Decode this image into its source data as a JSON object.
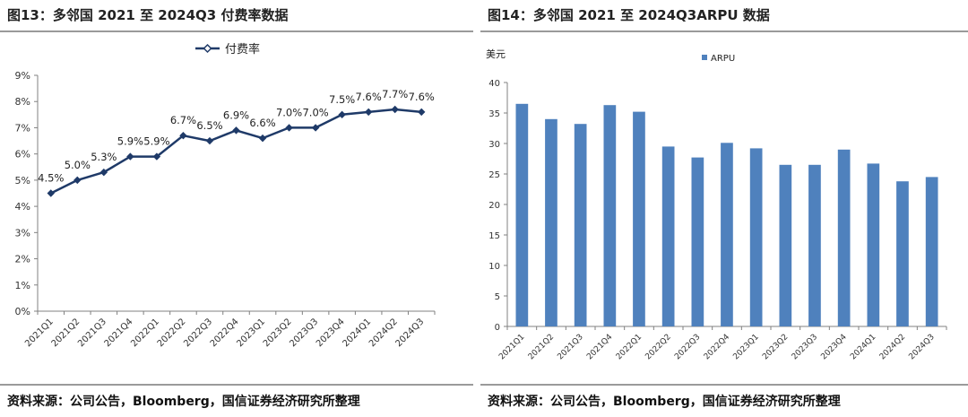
{
  "left": {
    "title": "图13：多邻国 2021 至 2024Q3 付费率数据",
    "source": "资料来源：公司公告，Bloomberg，国信证券经济研究所整理"
  },
  "right": {
    "title": "图14：多邻国 2021 至 2024Q3ARPU 数据",
    "source": "资料来源：公司公告，Bloomberg，国信证券经济研究所整理"
  },
  "colors": {
    "line": "#1f3a68",
    "bar": "#4f81bd",
    "axis": "#808080",
    "rule": "#9a9a9a"
  },
  "chart_data": [
    {
      "type": "line",
      "title": "",
      "xlabel": "",
      "ylabel": "",
      "categories": [
        "2021Q1",
        "2021Q2",
        "2021Q3",
        "2021Q4",
        "2022Q1",
        "2022Q2",
        "2022Q3",
        "2022Q4",
        "2023Q1",
        "2023Q2",
        "2023Q3",
        "2023Q4",
        "2024Q1",
        "2024Q2",
        "2024Q3"
      ],
      "series": [
        {
          "name": "付费率",
          "values": [
            4.5,
            5.0,
            5.3,
            5.9,
            5.9,
            6.7,
            6.5,
            6.9,
            6.6,
            7.0,
            7.0,
            7.5,
            7.6,
            7.7,
            7.6
          ]
        }
      ],
      "data_labels": [
        "4.5%",
        "5.0%",
        "5.3%",
        "5.9%",
        "5.9%",
        "6.7%",
        "6.5%",
        "6.9%",
        "6.6%",
        "7.0%",
        "7.0%",
        "7.5%",
        "7.6%",
        "7.7%",
        "7.6%"
      ],
      "ylim": [
        0,
        9
      ],
      "yticks": [
        "0%",
        "1%",
        "2%",
        "3%",
        "4%",
        "5%",
        "6%",
        "7%",
        "8%",
        "9%"
      ],
      "legend": "top-center",
      "grid": false
    },
    {
      "type": "bar",
      "title": "",
      "xlabel": "",
      "ylabel": "美元",
      "categories": [
        "2021Q1",
        "2021Q2",
        "2021Q3",
        "2021Q4",
        "2022Q1",
        "2022Q2",
        "2022Q3",
        "2022Q4",
        "2023Q1",
        "2023Q2",
        "2023Q3",
        "2023Q4",
        "2024Q1",
        "2024Q2",
        "2024Q3"
      ],
      "series": [
        {
          "name": "ARPU",
          "values": [
            36.5,
            34.0,
            33.2,
            36.3,
            35.2,
            29.5,
            27.7,
            30.1,
            29.2,
            26.5,
            26.5,
            29.0,
            26.7,
            23.8,
            24.5
          ]
        }
      ],
      "ylim": [
        0,
        40
      ],
      "yticks": [
        "0",
        "5",
        "10",
        "15",
        "20",
        "25",
        "30",
        "35",
        "40"
      ],
      "legend": "top-left",
      "grid": false
    }
  ]
}
